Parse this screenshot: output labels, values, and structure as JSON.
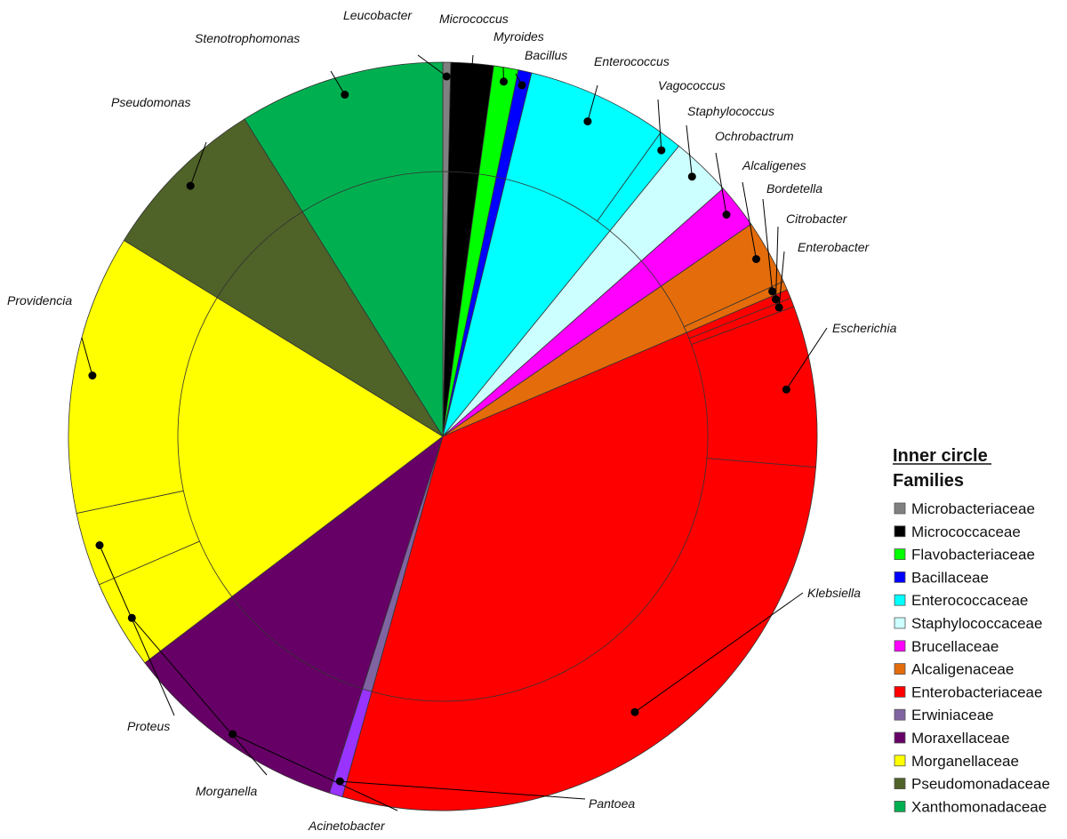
{
  "chart_data": {
    "type": "pie",
    "subtype": "two-level sunburst",
    "legend": {
      "title": "Inner circle",
      "subtitle": "Families",
      "placement": "right"
    },
    "inner_ring": [
      {
        "name": "Microbacteriaceae",
        "value": 0.35,
        "color": "#808080"
      },
      {
        "name": "Micrococcaceae",
        "value": 1.9,
        "color": "#000000"
      },
      {
        "name": "Flavobacteriaceae",
        "value": 1.1,
        "color": "#00ff00"
      },
      {
        "name": "Bacillaceae",
        "value": 0.6,
        "color": "#0000ff"
      },
      {
        "name": "Enterococcaceae",
        "value": 7.3,
        "color": "#00ffff"
      },
      {
        "name": "Staphylococcaceae",
        "value": 2.7,
        "color": "#ccffff"
      },
      {
        "name": "Brucellaceae",
        "value": 2.0,
        "color": "#ff00ff"
      },
      {
        "name": "Alcaligenaceae",
        "value": 3.3,
        "color": "#e46c0a"
      },
      {
        "name": "Enterobacteriaceae",
        "value": 37.0,
        "color": "#ff0000"
      },
      {
        "name": "Erwiniaceae",
        "value": 0.6,
        "color": "#8064a2"
      },
      {
        "name": "Moraxellaceae",
        "value": 10.1,
        "color": "#660066"
      },
      {
        "name": "Morganellaceae",
        "value": 19.8,
        "color": "#ffff00"
      },
      {
        "name": "Pseudomonadaceae",
        "value": 7.6,
        "color": "#4f6228"
      },
      {
        "name": "Xanthomonadaceae",
        "value": 9.2,
        "color": "#00b050"
      }
    ],
    "outer_ring": [
      {
        "name": "Leucobacter",
        "family": "Microbacteriaceae",
        "value": 0.35
      },
      {
        "name": "Micrococcus",
        "family": "Micrococcaceae",
        "value": 1.9
      },
      {
        "name": "Myroides",
        "family": "Flavobacteriaceae",
        "value": 1.1
      },
      {
        "name": "Bacillus",
        "family": "Bacillaceae",
        "value": 0.6
      },
      {
        "name": "Enterococcus",
        "family": "Enterococcaceae",
        "value": 6.3
      },
      {
        "name": "Vagococcus",
        "family": "Enterococcaceae",
        "value": 1.0
      },
      {
        "name": "Staphylococcus",
        "family": "Staphylococcaceae",
        "value": 2.7
      },
      {
        "name": "Ochrobactrum",
        "family": "Brucellaceae",
        "value": 2.0
      },
      {
        "name": "Alcaligenes",
        "family": "Alcaligenaceae",
        "value": 2.9
      },
      {
        "name": "Bordetella",
        "family": "Alcaligenaceae",
        "value": 0.4
      },
      {
        "name": "Citrobacter",
        "family": "Enterobacteriaceae",
        "value": 0.4
      },
      {
        "name": "Enterobacter",
        "family": "Enterobacteriaceae",
        "value": 0.4
      },
      {
        "name": "Escherichia",
        "family": "Enterobacteriaceae",
        "value": 7.2
      },
      {
        "name": "Klebsiella",
        "family": "Enterobacteriaceae",
        "value": 29.0
      },
      {
        "name": "Pantoea",
        "family": "Erwiniaceae",
        "value": 0.6
      },
      {
        "name": "Acinetobacter",
        "family": "Moraxellaceae",
        "value": 10.1
      },
      {
        "name": "Morganella",
        "family": "Morganellaceae",
        "value": 4.0
      },
      {
        "name": "Proteus",
        "family": "Morganellaceae",
        "value": 3.3
      },
      {
        "name": "Providencia",
        "family": "Morganellaceae",
        "value": 12.5
      },
      {
        "name": "Pseudomonas",
        "family": "Pseudomonadaceae",
        "value": 7.6
      },
      {
        "name": "Stenotrophomonas",
        "family": "Xanthomonadaceae",
        "value": 9.2
      }
    ]
  }
}
